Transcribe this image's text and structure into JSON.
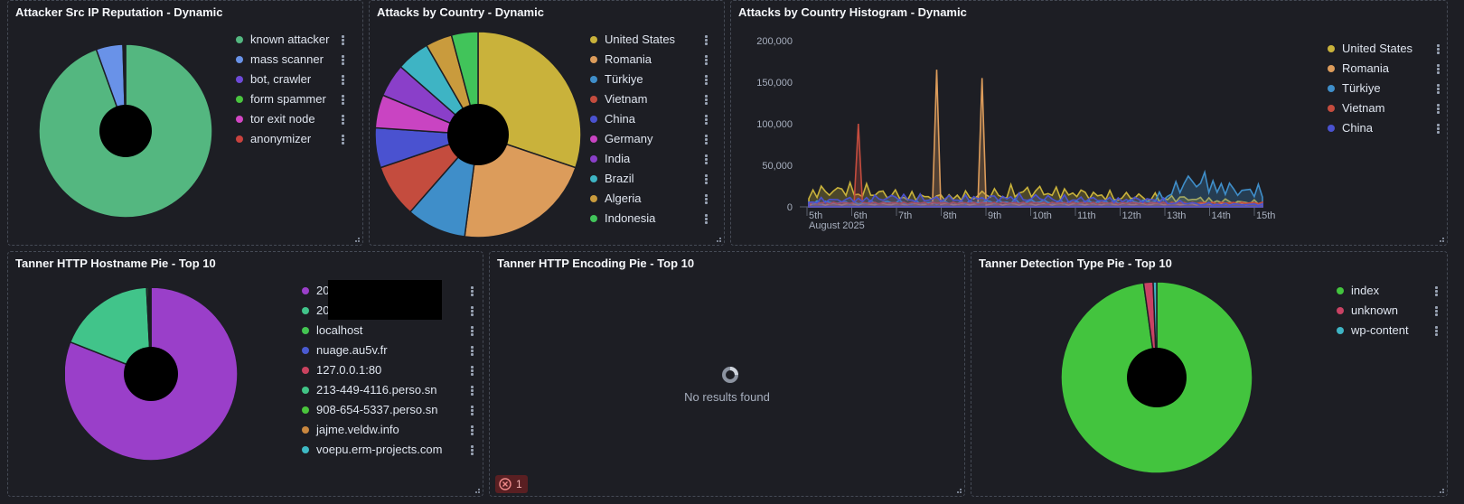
{
  "panels": {
    "reputation": {
      "title": "Attacker Src IP Reputation - Dynamic",
      "legend": [
        {
          "label": "known attacker",
          "color": "#54b780"
        },
        {
          "label": "mass scanner",
          "color": "#6992e8"
        },
        {
          "label": "bot, crawler",
          "color": "#6d4ad8"
        },
        {
          "label": "form spammer",
          "color": "#49c43f"
        },
        {
          "label": "tor exit node",
          "color": "#d246c4"
        },
        {
          "label": "anonymizer",
          "color": "#c9423e"
        }
      ]
    },
    "country": {
      "title": "Attacks by Country - Dynamic",
      "legend": [
        {
          "label": "United States",
          "color": "#c9b23b"
        },
        {
          "label": "Romania",
          "color": "#dc9c5b"
        },
        {
          "label": "Türkiye",
          "color": "#3f8ec9"
        },
        {
          "label": "Vietnam",
          "color": "#c44c3e"
        },
        {
          "label": "China",
          "color": "#4a52d0"
        },
        {
          "label": "Germany",
          "color": "#c944c2"
        },
        {
          "label": "India",
          "color": "#8a3fc9"
        },
        {
          "label": "Brazil",
          "color": "#3eb4c4"
        },
        {
          "label": "Algeria",
          "color": "#c99b3d"
        },
        {
          "label": "Indonesia",
          "color": "#41c45a"
        }
      ]
    },
    "histogram": {
      "title": "Attacks by Country Histogram - Dynamic",
      "legend": [
        {
          "label": "United States",
          "color": "#c9b23b"
        },
        {
          "label": "Romania",
          "color": "#dc9c5b"
        },
        {
          "label": "Türkiye",
          "color": "#3f8ec9"
        },
        {
          "label": "Vietnam",
          "color": "#c44c3e"
        },
        {
          "label": "China",
          "color": "#4a52d0"
        }
      ],
      "y_ticks": [
        "200,000",
        "150,000",
        "100,000",
        "50,000",
        "0"
      ],
      "x_ticks": [
        "5th",
        "6th",
        "7th",
        "8th",
        "9th",
        "10th",
        "11th",
        "12th",
        "13th",
        "14th",
        "15th"
      ],
      "x_sublabel": "August 2025"
    },
    "hostname": {
      "title": "Tanner HTTP Hostname Pie - Top 10",
      "legend": [
        {
          "label": "20",
          "color": "#9a3fc9"
        },
        {
          "label": "20",
          "color": "#41c48a"
        },
        {
          "label": "localhost",
          "color": "#43c452"
        },
        {
          "label": "nuage.au5v.fr",
          "color": "#4a5ad0"
        },
        {
          "label": "127.0.0.1:80",
          "color": "#c9425f"
        },
        {
          "label": "213-449-4116.perso.sn",
          "color": "#41c486"
        },
        {
          "label": "908-654-5337.perso.sn",
          "color": "#4ac43c"
        },
        {
          "label": "jajme.veldw.info",
          "color": "#c9873f"
        },
        {
          "label": "voepu.erm-projects.com",
          "color": "#3eb9c4"
        }
      ]
    },
    "encoding": {
      "title": "Tanner HTTP Encoding Pie - Top 10",
      "no_results": "No results found",
      "error_count": "1"
    },
    "detection": {
      "title": "Tanner Detection Type Pie - Top 10",
      "legend": [
        {
          "label": "index",
          "color": "#43c43e"
        },
        {
          "label": "unknown",
          "color": "#c94264"
        },
        {
          "label": "wp-content",
          "color": "#3eb4c4"
        }
      ]
    }
  },
  "chart_data": [
    {
      "type": "pie",
      "title": "Attacker Src IP Reputation - Dynamic",
      "categories": [
        "known attacker",
        "mass scanner",
        "bot, crawler",
        "form spammer",
        "tor exit node",
        "anonymizer"
      ],
      "values": [
        94.5,
        5.0,
        0.2,
        0.1,
        0.1,
        0.1
      ]
    },
    {
      "type": "pie",
      "title": "Attacks by Country - Dynamic",
      "categories": [
        "United States",
        "Romania",
        "Türkiye",
        "Vietnam",
        "China",
        "Germany",
        "India",
        "Brazil",
        "Algeria",
        "Indonesia"
      ],
      "values": [
        29,
        21,
        9,
        8,
        6,
        5,
        5,
        5,
        4,
        4
      ]
    },
    {
      "type": "area",
      "title": "Attacks by Country Histogram - Dynamic",
      "x": [
        "5th",
        "6th",
        "7th",
        "8th",
        "9th",
        "10th",
        "11th",
        "12th",
        "13th",
        "14th",
        "15th"
      ],
      "ylim": [
        0,
        200000
      ],
      "series": [
        {
          "name": "United States",
          "values": [
            18000,
            22000,
            15000,
            12000,
            15000,
            20000,
            18000,
            14000,
            12000,
            10000,
            6000
          ]
        },
        {
          "name": "Romania",
          "values": [
            5000,
            4000,
            3000,
            165000,
            155000,
            3000,
            2000,
            2000,
            2000,
            1000,
            1000
          ]
        },
        {
          "name": "Türkiye",
          "values": [
            6000,
            5000,
            6000,
            5000,
            6000,
            7000,
            6000,
            6000,
            7000,
            35000,
            20000
          ]
        },
        {
          "name": "Vietnam",
          "values": [
            3000,
            100000,
            3000,
            4000,
            3000,
            3000,
            2000,
            2000,
            2000,
            1000,
            1000
          ]
        },
        {
          "name": "China",
          "values": [
            8000,
            9000,
            12000,
            10000,
            11000,
            12000,
            10000,
            9000,
            9000,
            4000,
            3000
          ]
        }
      ]
    },
    {
      "type": "pie",
      "title": "Tanner HTTP Hostname Pie - Top 10",
      "categories": [
        "20",
        "20",
        "localhost",
        "nuage.au5v.fr",
        "127.0.0.1:80",
        "213-449-4116.perso.sn",
        "908-654-5337.perso.sn",
        "jajme.veldw.info",
        "voepu.erm-projects.com"
      ],
      "values": [
        81.0,
        18.2,
        0.3,
        0.2,
        0.1,
        0.1,
        0.05,
        0.03,
        0.02
      ]
    },
    {
      "type": "pie",
      "title": "Tanner Detection Type Pie - Top 10",
      "categories": [
        "index",
        "unknown",
        "wp-content"
      ],
      "values": [
        97.8,
        1.6,
        0.6
      ]
    }
  ]
}
